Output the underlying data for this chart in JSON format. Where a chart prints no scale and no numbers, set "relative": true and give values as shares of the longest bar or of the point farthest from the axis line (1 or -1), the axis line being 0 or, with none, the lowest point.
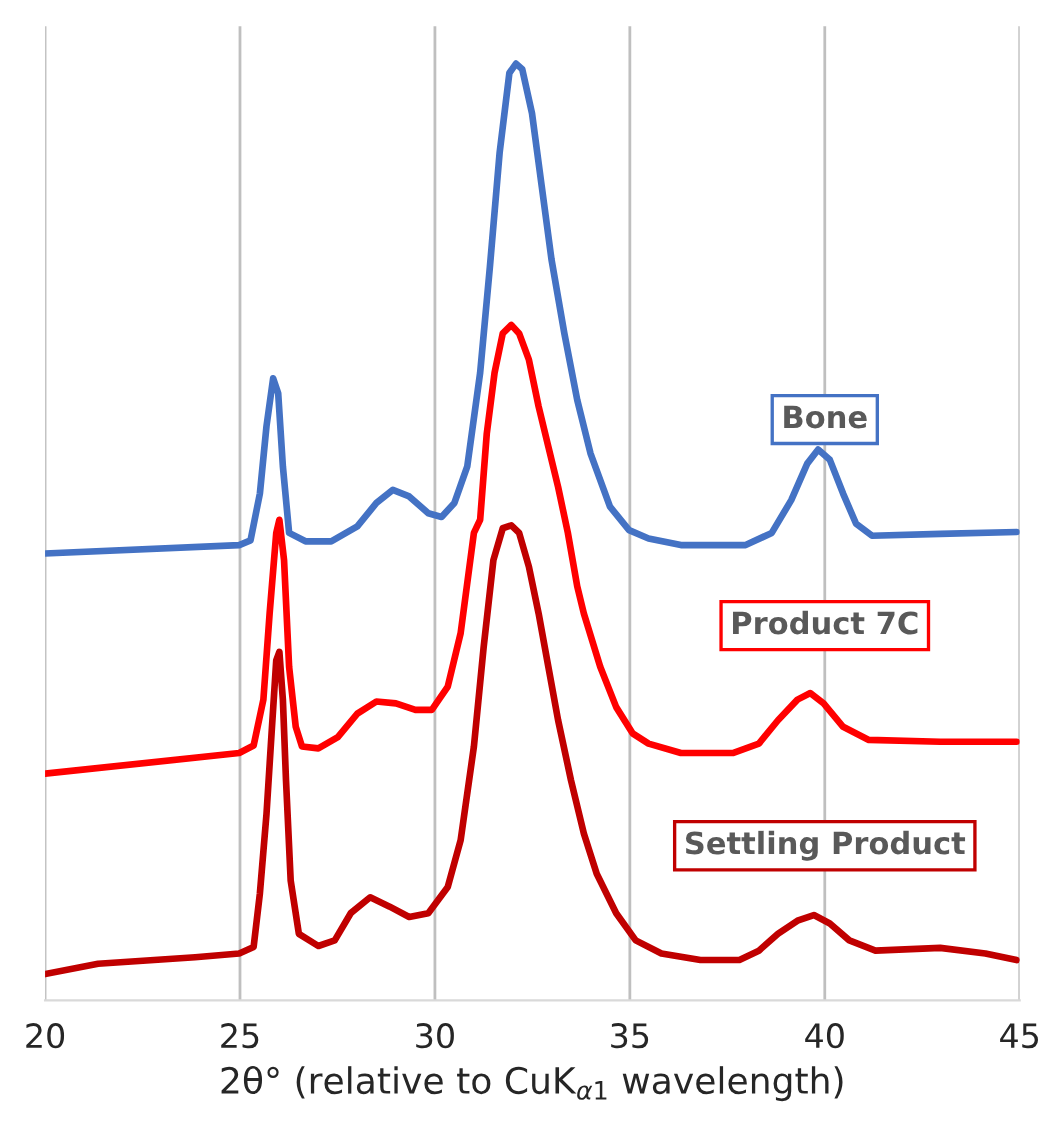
{
  "chart_data": {
    "type": "line",
    "relative": true,
    "xlabel": "2θ° (relative to CuK$_{α1}$ wavelength)",
    "xlim": [
      20,
      45
    ],
    "xticks": [
      20,
      25,
      30,
      35,
      40,
      45
    ],
    "grid": "x",
    "legend": false,
    "marker": "none",
    "line_style": "solid",
    "series": [
      {
        "name": "Bone",
        "color": "#4472c4",
        "x": [
          20.0,
          24.98,
          25.27,
          25.51,
          25.68,
          25.85,
          25.98,
          26.1,
          26.26,
          26.68,
          27.34,
          28.01,
          28.5,
          28.92,
          29.34,
          29.83,
          30.17,
          30.5,
          30.83,
          31.16,
          31.41,
          31.66,
          31.91,
          32.08,
          32.24,
          32.49,
          32.74,
          32.99,
          33.32,
          33.65,
          33.99,
          34.49,
          34.98,
          35.48,
          36.31,
          37.97,
          38.64,
          39.14,
          39.55,
          39.83,
          40.13,
          40.47,
          40.8,
          41.21,
          42.96,
          44.92
        ],
        "values": [
          0.477,
          0.486,
          0.491,
          0.541,
          0.613,
          0.664,
          0.648,
          0.57,
          0.499,
          0.49,
          0.49,
          0.506,
          0.531,
          0.545,
          0.538,
          0.52,
          0.516,
          0.531,
          0.57,
          0.67,
          0.783,
          0.905,
          0.99,
          1.0,
          0.994,
          0.947,
          0.869,
          0.791,
          0.712,
          0.641,
          0.584,
          0.527,
          0.502,
          0.493,
          0.486,
          0.486,
          0.499,
          0.534,
          0.573,
          0.588,
          0.577,
          0.541,
          0.509,
          0.496,
          0.498,
          0.5
        ]
      },
      {
        "name": "Product 7C",
        "color": "#ff0000",
        "x": [
          20.0,
          24.98,
          25.35,
          25.6,
          25.76,
          25.93,
          26.01,
          26.13,
          26.26,
          26.43,
          26.59,
          27.01,
          27.51,
          28.01,
          28.5,
          29.0,
          29.5,
          29.92,
          30.33,
          30.66,
          31.0,
          31.16,
          31.33,
          31.53,
          31.74,
          31.96,
          32.16,
          32.41,
          32.66,
          32.91,
          33.16,
          33.41,
          33.65,
          33.82,
          34.24,
          34.65,
          35.07,
          35.48,
          36.31,
          37.64,
          38.31,
          38.8,
          39.3,
          39.63,
          39.97,
          40.47,
          41.13,
          42.96,
          44.92
        ],
        "values": [
          0.242,
          0.264,
          0.272,
          0.321,
          0.413,
          0.499,
          0.513,
          0.47,
          0.356,
          0.292,
          0.271,
          0.269,
          0.281,
          0.306,
          0.319,
          0.317,
          0.31,
          0.31,
          0.335,
          0.392,
          0.499,
          0.513,
          0.605,
          0.67,
          0.712,
          0.721,
          0.712,
          0.684,
          0.634,
          0.591,
          0.548,
          0.499,
          0.442,
          0.413,
          0.356,
          0.313,
          0.285,
          0.274,
          0.264,
          0.264,
          0.274,
          0.299,
          0.321,
          0.328,
          0.317,
          0.292,
          0.278,
          0.276,
          0.276
        ]
      },
      {
        "name": "Settling Product",
        "color": "#c00000",
        "x": [
          20.0,
          21.36,
          23.85,
          24.98,
          25.35,
          25.51,
          25.68,
          25.81,
          25.93,
          26.01,
          26.1,
          26.18,
          26.3,
          26.51,
          27.01,
          27.43,
          27.84,
          28.34,
          28.84,
          29.34,
          29.83,
          30.33,
          30.66,
          31.0,
          31.25,
          31.5,
          31.74,
          31.96,
          32.16,
          32.41,
          32.66,
          32.91,
          33.16,
          33.49,
          33.82,
          34.15,
          34.65,
          35.15,
          35.81,
          36.81,
          37.81,
          38.31,
          38.8,
          39.3,
          39.72,
          40.13,
          40.63,
          41.3,
          42.96,
          44.12,
          44.92
        ],
        "values": [
          0.028,
          0.039,
          0.046,
          0.05,
          0.057,
          0.114,
          0.199,
          0.285,
          0.363,
          0.372,
          0.321,
          0.235,
          0.128,
          0.071,
          0.058,
          0.064,
          0.093,
          0.11,
          0.1,
          0.089,
          0.093,
          0.121,
          0.171,
          0.271,
          0.377,
          0.47,
          0.504,
          0.507,
          0.499,
          0.463,
          0.413,
          0.356,
          0.299,
          0.235,
          0.178,
          0.135,
          0.093,
          0.064,
          0.05,
          0.043,
          0.043,
          0.053,
          0.071,
          0.085,
          0.091,
          0.082,
          0.064,
          0.053,
          0.056,
          0.05,
          0.043
        ]
      }
    ]
  }
}
